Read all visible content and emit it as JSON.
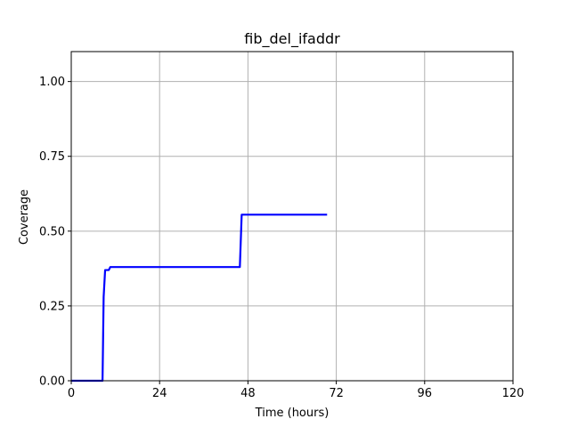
{
  "chart_data": {
    "type": "line",
    "title": "fib_del_ifaddr",
    "xlabel": "Time (hours)",
    "ylabel": "Coverage",
    "xlim": [
      0,
      120
    ],
    "ylim": [
      0,
      1.1
    ],
    "xticks": [
      0,
      24,
      48,
      72,
      96,
      120
    ],
    "yticks": [
      0.0,
      0.25,
      0.5,
      0.75,
      1.0
    ],
    "xtick_labels": [
      "0",
      "24",
      "48",
      "72",
      "96",
      "120"
    ],
    "ytick_labels": [
      "0.00",
      "0.25",
      "0.50",
      "0.75",
      "1.00"
    ],
    "grid": true,
    "series": [
      {
        "color": "#0000ff",
        "x": [
          0,
          8.5,
          8.8,
          9.2,
          9.5,
          10.2,
          10.6,
          45.8,
          46.3,
          69.5
        ],
        "y": [
          0.0,
          0.0,
          0.28,
          0.37,
          0.37,
          0.37,
          0.38,
          0.38,
          0.555,
          0.555
        ]
      }
    ]
  }
}
